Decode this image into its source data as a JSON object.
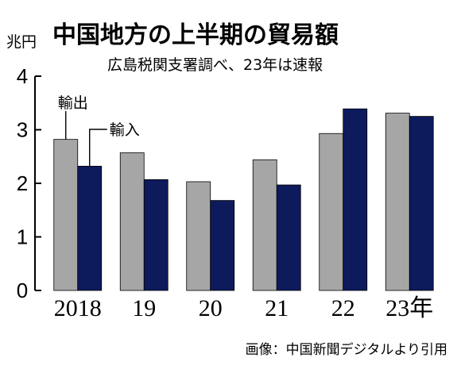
{
  "chart_data": {
    "type": "bar",
    "title": "中国地方の上半期の貿易額",
    "subtitle": "広島税関支署調べ、23年は速報",
    "ylabel": "兆円",
    "ylim": [
      0,
      4
    ],
    "yticks": [
      "0",
      "1",
      "2",
      "3",
      "4"
    ],
    "categories": [
      "2018",
      "19",
      "20",
      "21",
      "22",
      "23年"
    ],
    "series": [
      {
        "name": "輸出",
        "color": "#a6a6a6",
        "values": [
          2.82,
          2.57,
          2.03,
          2.44,
          2.93,
          3.31
        ]
      },
      {
        "name": "輸入",
        "color": "#0d1a5c",
        "values": [
          2.32,
          2.07,
          1.68,
          1.97,
          3.39,
          3.25
        ]
      }
    ],
    "grid": false,
    "legend": "top-left"
  },
  "credit": "画像：中国新聞デジタルより引用"
}
